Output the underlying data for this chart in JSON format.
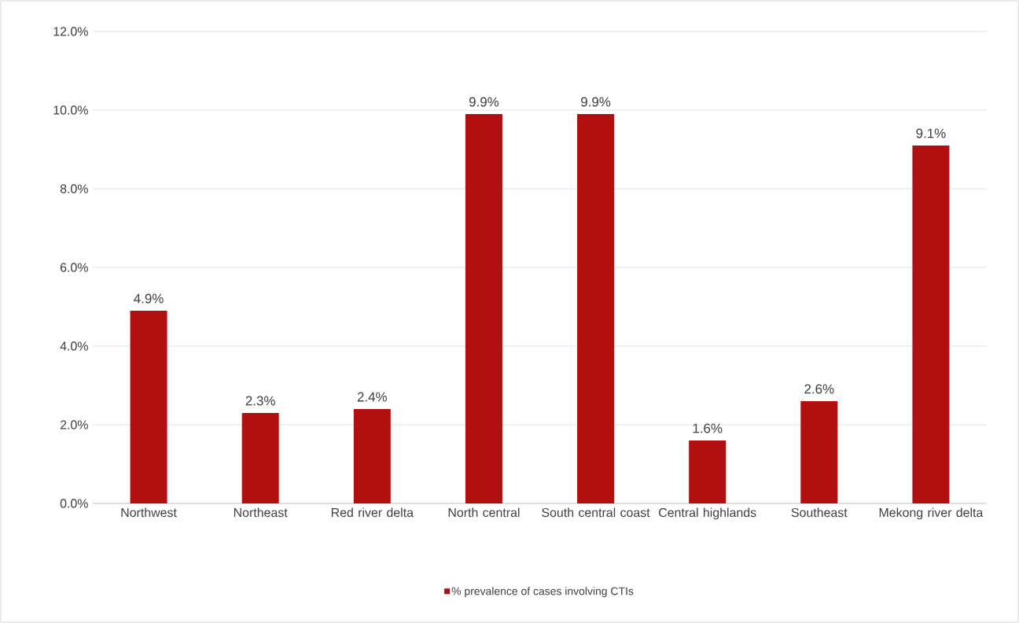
{
  "chart_data": {
    "type": "bar",
    "categories": [
      "Northwest",
      "Northeast",
      "Red river delta",
      "North central",
      "South central coast",
      "Central highlands",
      "Southeast",
      "Mekong river delta"
    ],
    "series": [
      {
        "name": "% prevalence of cases involving CTIs",
        "color": "#b20f11",
        "values": [
          4.9,
          2.3,
          2.4,
          9.9,
          9.9,
          1.6,
          2.6,
          9.1
        ],
        "value_labels": [
          "4.9%",
          "2.3%",
          "2.4%",
          "9.9%",
          "9.9%",
          "1.6%",
          "2.6%",
          "9.1%"
        ]
      }
    ],
    "ylim": [
      0,
      12
    ],
    "yticks": [
      {
        "value": 0,
        "label": "0.0%"
      },
      {
        "value": 2,
        "label": "2.0%"
      },
      {
        "value": 4,
        "label": "4.0%"
      },
      {
        "value": 6,
        "label": "6.0%"
      },
      {
        "value": 8,
        "label": "8.0%"
      },
      {
        "value": 10,
        "label": "10.0%"
      },
      {
        "value": 12,
        "label": "12.0%"
      }
    ],
    "grid": "y",
    "legend": "bottom"
  }
}
